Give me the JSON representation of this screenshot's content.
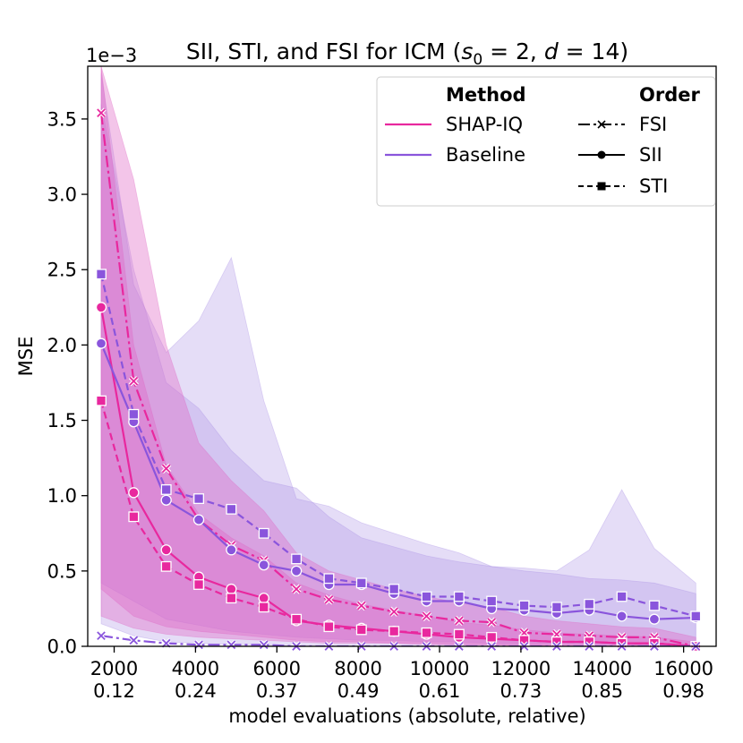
{
  "chart_data": {
    "type": "line",
    "title": "SII, STI, and FSI for ICM (s₀ = 2, d = 14)",
    "title_parts": {
      "prefix": "SII, STI, and FSI for ICM (",
      "s": "s",
      "s_sub": "0",
      "s_eq": " = 2, ",
      "d": "d",
      "d_eq": " = 14)"
    },
    "ylabel": "MSE",
    "xlabel": "model evaluations (absolute, relative)",
    "y_exponent": "1e−3",
    "xlim": [
      1350,
      16800
    ],
    "ylim": [
      0,
      3.85
    ],
    "x_ticks": [
      {
        "value": 2000,
        "abs": "2000",
        "rel": "0.12"
      },
      {
        "value": 4000,
        "abs": "4000",
        "rel": "0.24"
      },
      {
        "value": 6000,
        "abs": "6000",
        "rel": "0.37"
      },
      {
        "value": 8000,
        "abs": "8000",
        "rel": "0.49"
      },
      {
        "value": 10000,
        "abs": "10000",
        "rel": "0.61"
      },
      {
        "value": 12000,
        "abs": "12000",
        "rel": "0.73"
      },
      {
        "value": 14000,
        "abs": "14000",
        "rel": "0.85"
      },
      {
        "value": 16000,
        "abs": "16000",
        "rel": "0.98"
      }
    ],
    "y_ticks": [
      {
        "value": 0.0,
        "label": "0.0"
      },
      {
        "value": 0.5,
        "label": "0.5"
      },
      {
        "value": 1.0,
        "label": "1.0"
      },
      {
        "value": 1.5,
        "label": "1.5"
      },
      {
        "value": 2.0,
        "label": "2.0"
      },
      {
        "value": 2.5,
        "label": "2.5"
      },
      {
        "value": 3.0,
        "label": "3.0"
      },
      {
        "value": 3.5,
        "label": "3.5"
      }
    ],
    "x": [
      1680,
      2480,
      3280,
      4080,
      4880,
      5680,
      6480,
      7280,
      8080,
      8880,
      9680,
      10480,
      11280,
      12080,
      12880,
      13680,
      14480,
      15280,
      16300
    ],
    "colors": {
      "shap_iq": "#e8289e",
      "baseline": "#8a55dc",
      "shap_iq_band": "#e066c4",
      "baseline_band": "#a98ee4"
    },
    "series": [
      {
        "name": "SHAP-IQ FSI",
        "method": "SHAP-IQ",
        "order": "FSI",
        "dash": "dashdot",
        "marker": "x",
        "values": [
          3.54,
          1.76,
          1.18,
          0.84,
          0.67,
          0.57,
          0.38,
          0.31,
          0.27,
          0.23,
          0.2,
          0.17,
          0.16,
          0.09,
          0.08,
          0.07,
          0.06,
          0.06,
          0.0
        ]
      },
      {
        "name": "SHAP-IQ SII",
        "method": "SHAP-IQ",
        "order": "SII",
        "dash": "solid",
        "marker": "circle",
        "values": [
          2.25,
          1.02,
          0.64,
          0.46,
          0.38,
          0.32,
          0.17,
          0.14,
          0.12,
          0.1,
          0.08,
          0.06,
          0.05,
          0.04,
          0.03,
          0.03,
          0.02,
          0.02,
          0.0
        ]
      },
      {
        "name": "SHAP-IQ STI",
        "method": "SHAP-IQ",
        "order": "STI",
        "dash": "dashed",
        "marker": "square",
        "values": [
          1.63,
          0.86,
          0.53,
          0.41,
          0.32,
          0.26,
          0.18,
          0.13,
          0.11,
          0.1,
          0.09,
          0.08,
          0.06,
          0.04,
          0.03,
          0.03,
          0.02,
          0.02,
          0.0
        ]
      },
      {
        "name": "Baseline FSI",
        "method": "Baseline",
        "order": "FSI",
        "dash": "dashdot",
        "marker": "x",
        "values": [
          0.07,
          0.04,
          0.02,
          0.01,
          0.01,
          0.01,
          0.0,
          0.0,
          0.0,
          0.0,
          0.0,
          0.0,
          0.0,
          0.0,
          0.0,
          0.0,
          0.0,
          0.0,
          0.0
        ]
      },
      {
        "name": "Baseline SII",
        "method": "Baseline",
        "order": "SII",
        "dash": "solid",
        "marker": "circle",
        "values": [
          2.01,
          1.49,
          0.97,
          0.84,
          0.64,
          0.54,
          0.5,
          0.41,
          0.41,
          0.35,
          0.3,
          0.3,
          0.25,
          0.24,
          0.22,
          0.24,
          0.2,
          0.18,
          0.19
        ]
      },
      {
        "name": "Baseline STI",
        "method": "Baseline",
        "order": "STI",
        "dash": "dashed",
        "marker": "square",
        "values": [
          2.47,
          1.54,
          1.04,
          0.98,
          0.91,
          0.75,
          0.58,
          0.45,
          0.42,
          0.38,
          0.33,
          0.33,
          0.3,
          0.27,
          0.26,
          0.28,
          0.33,
          0.27,
          0.2
        ]
      }
    ],
    "bands": [
      {
        "name": "Baseline outer band",
        "method": "Baseline",
        "upper": [
          3.8,
          2.4,
          1.95,
          2.16,
          2.58,
          1.63,
          0.98,
          0.93,
          0.82,
          0.75,
          0.68,
          0.62,
          0.53,
          0.52,
          0.5,
          0.64,
          1.04,
          0.65,
          0.42
        ],
        "lower": [
          0.15,
          0.07,
          0.03,
          0.02,
          0.01,
          0.01,
          0.0,
          0.0,
          0.0,
          0.0,
          0.0,
          0.0,
          0.0,
          0.0,
          0.0,
          0.0,
          0.0,
          0.0,
          0.0
        ]
      },
      {
        "name": "Baseline inner band",
        "method": "Baseline",
        "upper": [
          3.6,
          2.5,
          1.75,
          1.58,
          1.3,
          1.1,
          1.05,
          0.86,
          0.72,
          0.66,
          0.6,
          0.56,
          0.53,
          0.5,
          0.48,
          0.45,
          0.44,
          0.42,
          0.35
        ],
        "lower": [
          0.42,
          0.3,
          0.18,
          0.14,
          0.1,
          0.08,
          0.06,
          0.05,
          0.04,
          0.04,
          0.03,
          0.03,
          0.02,
          0.02,
          0.02,
          0.02,
          0.01,
          0.01,
          0.0
        ]
      },
      {
        "name": "SHAP-IQ FSI band",
        "method": "SHAP-IQ",
        "upper": [
          3.85,
          3.1,
          2.0,
          1.35,
          1.1,
          0.9,
          0.62,
          0.5,
          0.44,
          0.38,
          0.33,
          0.29,
          0.26,
          0.2,
          0.17,
          0.15,
          0.13,
          0.12,
          0.06
        ],
        "lower": [
          0.2,
          0.12,
          0.08,
          0.06,
          0.05,
          0.04,
          0.03,
          0.02,
          0.02,
          0.02,
          0.01,
          0.01,
          0.01,
          0.0,
          0.0,
          0.0,
          0.0,
          0.0,
          0.0
        ]
      },
      {
        "name": "SHAP-IQ SII band",
        "method": "SHAP-IQ",
        "upper": [
          3.85,
          2.0,
          1.2,
          0.88,
          0.72,
          0.6,
          0.42,
          0.34,
          0.28,
          0.24,
          0.2,
          0.16,
          0.14,
          0.11,
          0.09,
          0.08,
          0.07,
          0.06,
          0.03
        ],
        "lower": [
          0.38,
          0.2,
          0.13,
          0.1,
          0.08,
          0.06,
          0.04,
          0.03,
          0.03,
          0.02,
          0.02,
          0.01,
          0.01,
          0.01,
          0.0,
          0.0,
          0.0,
          0.0,
          0.0
        ]
      }
    ],
    "legend": {
      "position": "top-right",
      "method_header": "Method",
      "order_header": "Order",
      "methods": [
        {
          "label": "SHAP-IQ",
          "color": "#e8289e"
        },
        {
          "label": "Baseline",
          "color": "#8a55dc"
        }
      ],
      "orders": [
        {
          "label": "FSI",
          "dash": "dashdot",
          "marker": "x"
        },
        {
          "label": "SII",
          "dash": "solid",
          "marker": "circle"
        },
        {
          "label": "STI",
          "dash": "dashed",
          "marker": "square"
        }
      ]
    }
  }
}
